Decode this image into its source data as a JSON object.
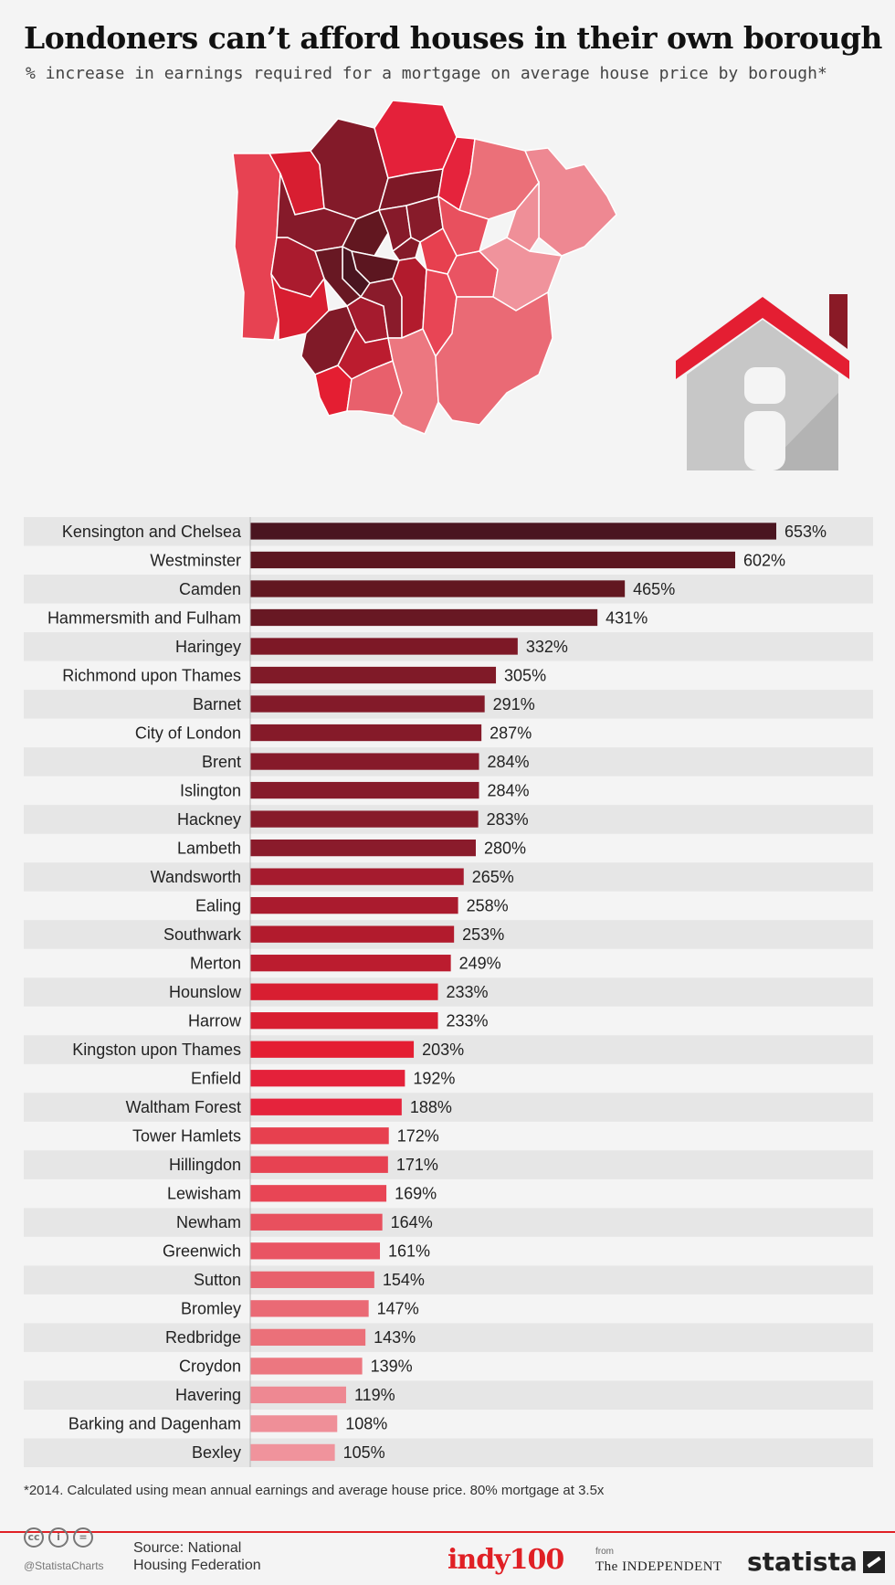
{
  "title": "Londoners can’t afford houses in their own borough",
  "subtitle": "% increase in earnings required for a mortgage on average house price by borough*",
  "footnote": "*2014. Calculated using mean annual earnings and average house price. 80% mortgage at 3.5x",
  "footer": {
    "handle": "@StatistaCharts",
    "source_line1": "Source: National",
    "source_line2": "Housing Federation",
    "indy": "indy100",
    "from": "from",
    "independent": "The INDEPENDENT",
    "statista": "statista",
    "cc_icons": [
      "cc-icon",
      "person-icon",
      "equals-icon"
    ]
  },
  "colors": {
    "darkest": "#4a1520",
    "darker": "#7d1826",
    "mid": "#b21b2d",
    "red": "#e41e32",
    "salmon": "#e8606c",
    "pale": "#ec8a93",
    "row_shade": "#e6e6e6",
    "house_roof": "#e41e32",
    "house_body": "#c7c7c7"
  },
  "chart_data": {
    "type": "bar",
    "orientation": "horizontal",
    "value_suffix": "%",
    "categories": [
      "Kensington and Chelsea",
      "Westminster",
      "Camden",
      "Hammersmith and Fulham",
      "Haringey",
      "Richmond upon Thames",
      "Barnet",
      "City of London",
      "Brent",
      "Islington",
      "Hackney",
      "Lambeth",
      "Wandsworth",
      "Ealing",
      "Southwark",
      "Merton",
      "Hounslow",
      "Harrow",
      "Kingston upon Thames",
      "Enfield",
      "Waltham Forest",
      "Tower Hamlets",
      "Hillingdon",
      "Lewisham",
      "Newham",
      "Greenwich",
      "Sutton",
      "Bromley",
      "Redbridge",
      "Croydon",
      "Havering",
      "Barking and Dagenham",
      "Bexley"
    ],
    "values": [
      653,
      602,
      465,
      431,
      332,
      305,
      291,
      287,
      284,
      284,
      283,
      280,
      265,
      258,
      253,
      249,
      233,
      233,
      203,
      192,
      188,
      172,
      171,
      169,
      164,
      161,
      154,
      147,
      143,
      139,
      119,
      108,
      105
    ],
    "colors": [
      "#4a1520",
      "#5c1620",
      "#621720",
      "#681823",
      "#7d1826",
      "#801a28",
      "#831a29",
      "#851a29",
      "#861a2a",
      "#861a2a",
      "#871b2a",
      "#8a1b2b",
      "#a51b2e",
      "#aa1b2e",
      "#b21b2d",
      "#bb1c2f",
      "#d81e31",
      "#d81e31",
      "#e41e32",
      "#e4213a",
      "#e5233c",
      "#e7404f",
      "#e74252",
      "#e84555",
      "#e8505e",
      "#e95463",
      "#e8606c",
      "#ea6a75",
      "#eb7079",
      "#ec7780",
      "#ee8892",
      "#ef8f98",
      "#f0939c"
    ],
    "xlim": [
      0,
      653
    ],
    "title": "",
    "xlabel": "",
    "ylabel": ""
  }
}
